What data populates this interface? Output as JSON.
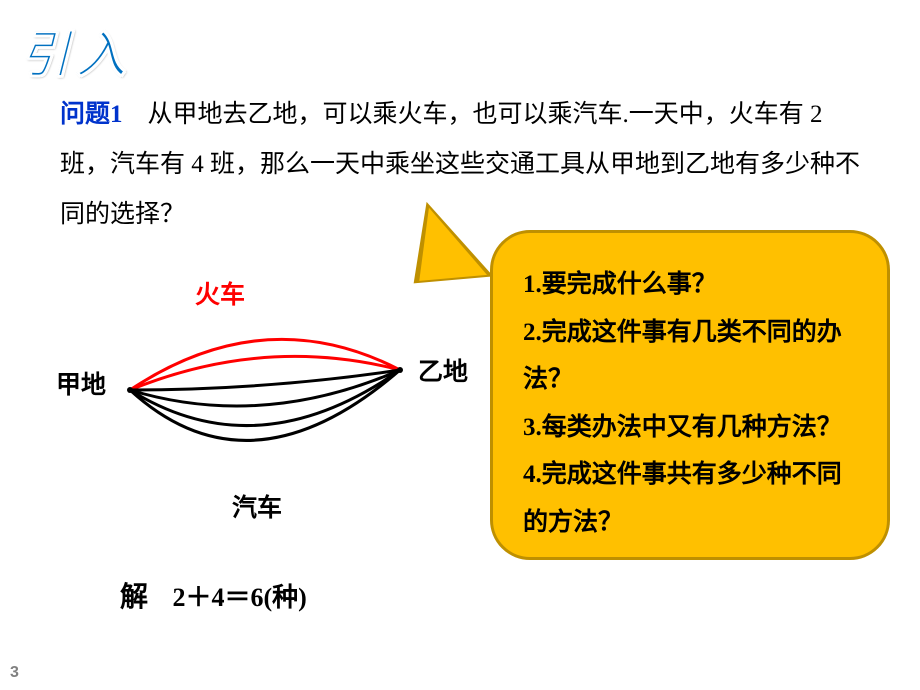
{
  "header": {
    "title": "引入"
  },
  "problem": {
    "label": "问题1",
    "text": "　从甲地去乙地，可以乘火车，也可以乘汽车.一天中，火车有 2 班，汽车有 4 班，那么一天中乘坐这些交通工具从甲地到乙地有多少种不同的选择？"
  },
  "diagram": {
    "type": "network",
    "label_a": "甲地",
    "label_b": "乙地",
    "label_train": "火车",
    "label_car": "汽车",
    "point_a": [
      80,
      110
    ],
    "point_b": [
      350,
      90
    ],
    "train_color": "#ff0000",
    "car_color": "#000000",
    "stroke_width": 3,
    "train_arcs": [
      {
        "c": [
          215,
          20
        ]
      },
      {
        "c": [
          215,
          55
        ]
      }
    ],
    "car_arcs": [
      {
        "c": [
          215,
          110
        ]
      },
      {
        "c": [
          212,
          150
        ]
      },
      {
        "c": [
          208,
          190
        ]
      },
      {
        "c": [
          200,
          220
        ]
      }
    ],
    "endpoint_radius": 3
  },
  "callout": {
    "bg_color": "#ffc000",
    "border_color": "#bf9000",
    "items": [
      "1.要完成什么事？",
      "2.完成这件事有几类不同的办法？",
      "3.每类办法中又有几种方法？",
      "4.完成这件事共有多少种不同的方法？"
    ]
  },
  "solution": {
    "label": "解",
    "expr": "2＋4＝6(种)"
  },
  "page": {
    "num": "3"
  }
}
